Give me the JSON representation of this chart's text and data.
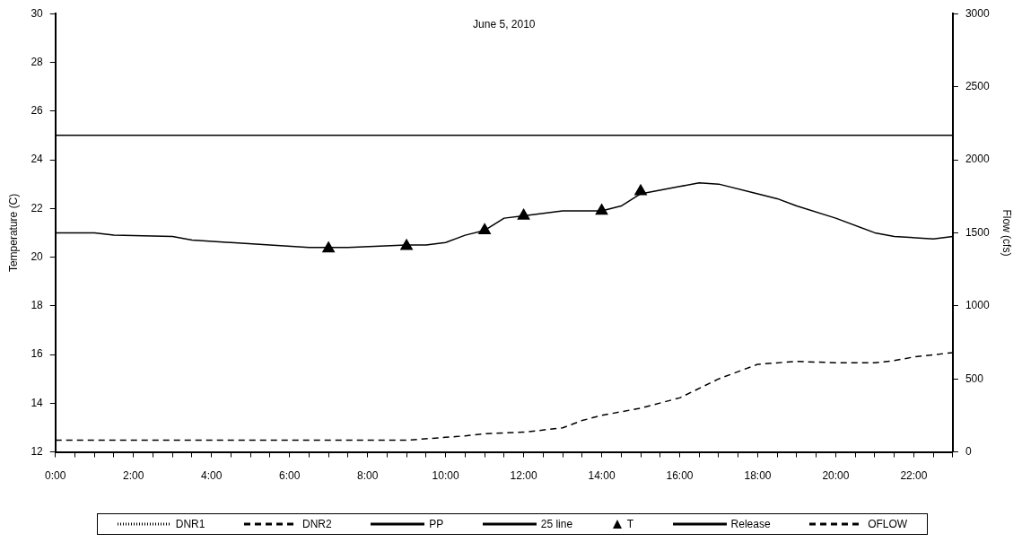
{
  "chart_data": {
    "type": "line",
    "title": "June 5, 2010",
    "ylabel": "Temperature (C)",
    "y2label": "Flow (cfs)",
    "xlim": [
      0,
      23
    ],
    "xticks": [
      {
        "value": 0,
        "label": "0:00"
      },
      {
        "value": 0.5,
        "label": null
      },
      {
        "value": 1,
        "label": null
      },
      {
        "value": 1.5,
        "label": null
      },
      {
        "value": 2,
        "label": "2:00"
      },
      {
        "value": 2.5,
        "label": null
      },
      {
        "value": 3,
        "label": null
      },
      {
        "value": 3.5,
        "label": null
      },
      {
        "value": 4,
        "label": "4:00"
      },
      {
        "value": 4.5,
        "label": null
      },
      {
        "value": 5,
        "label": null
      },
      {
        "value": 5.5,
        "label": null
      },
      {
        "value": 6,
        "label": "6:00"
      },
      {
        "value": 6.5,
        "label": null
      },
      {
        "value": 7,
        "label": null
      },
      {
        "value": 7.5,
        "label": null
      },
      {
        "value": 8,
        "label": "8:00"
      },
      {
        "value": 8.5,
        "label": null
      },
      {
        "value": 9,
        "label": null
      },
      {
        "value": 9.5,
        "label": null
      },
      {
        "value": 10,
        "label": "10:00"
      },
      {
        "value": 10.5,
        "label": null
      },
      {
        "value": 11,
        "label": null
      },
      {
        "value": 11.5,
        "label": null
      },
      {
        "value": 12,
        "label": "12:00"
      },
      {
        "value": 12.5,
        "label": null
      },
      {
        "value": 13,
        "label": null
      },
      {
        "value": 13.5,
        "label": null
      },
      {
        "value": 14,
        "label": "14:00"
      },
      {
        "value": 14.5,
        "label": null
      },
      {
        "value": 15,
        "label": null
      },
      {
        "value": 15.5,
        "label": null
      },
      {
        "value": 16,
        "label": "16:00"
      },
      {
        "value": 16.5,
        "label": null
      },
      {
        "value": 17,
        "label": null
      },
      {
        "value": 17.5,
        "label": null
      },
      {
        "value": 18,
        "label": "18:00"
      },
      {
        "value": 18.5,
        "label": null
      },
      {
        "value": 19,
        "label": null
      },
      {
        "value": 19.5,
        "label": null
      },
      {
        "value": 20,
        "label": "20:00"
      },
      {
        "value": 20.5,
        "label": null
      },
      {
        "value": 21,
        "label": null
      },
      {
        "value": 21.5,
        "label": null
      },
      {
        "value": 22,
        "label": "22:00"
      },
      {
        "value": 22.5,
        "label": null
      },
      {
        "value": 23,
        "label": null
      }
    ],
    "ylim": [
      12,
      30
    ],
    "yticks": [
      12,
      14,
      16,
      18,
      20,
      22,
      24,
      26,
      28,
      30
    ],
    "y2lim": [
      0,
      3000
    ],
    "y2ticks": [
      0,
      500,
      1000,
      1500,
      2000,
      2500,
      3000
    ],
    "legend": "bottom",
    "grid": false,
    "marker": "none",
    "series": [
      {
        "name": "DNR1",
        "color": "#000000",
        "line_style": "dotted"
      },
      {
        "name": "DNR2",
        "color": "#000000",
        "line_style": "dashed"
      },
      {
        "name": "PP",
        "color": "#000000",
        "line_style": "solid",
        "x": [
          0,
          1,
          1.5,
          3,
          3.5,
          4.5,
          5.5,
          6.5,
          7,
          7.5,
          9,
          9.5,
          10,
          10.5,
          11,
          11.5,
          12,
          13,
          13.5,
          14,
          14.5,
          15,
          16,
          16.5,
          17,
          18,
          18.5,
          19,
          20,
          21,
          21.5,
          22.5,
          23
        ],
        "values": [
          21.0,
          21.0,
          20.9,
          20.85,
          20.7,
          20.6,
          20.5,
          20.4,
          20.4,
          20.4,
          20.5,
          20.5,
          20.6,
          20.9,
          21.1,
          21.6,
          21.7,
          21.9,
          21.9,
          21.9,
          22.1,
          22.6,
          22.9,
          23.05,
          23.0,
          22.6,
          22.4,
          22.1,
          21.6,
          21.0,
          20.85,
          20.75,
          20.85
        ]
      },
      {
        "name": "25 line",
        "color": "#000000",
        "line_style": "solid",
        "x": [
          0,
          23
        ],
        "values": [
          25,
          25
        ]
      },
      {
        "name": "T",
        "type": "scatter",
        "marker": "triangle",
        "color": "#000000",
        "x": [
          7,
          9,
          11,
          12,
          14,
          15
        ],
        "values": [
          20.35,
          20.45,
          21.1,
          21.7,
          21.9,
          22.7
        ]
      },
      {
        "name": "Release",
        "color": "#000000",
        "line_style": "solid",
        "axis": "y2"
      },
      {
        "name": "OFLOW",
        "color": "#000000",
        "line_style": "dashed",
        "axis": "y2",
        "x": [
          0,
          9,
          10,
          10.5,
          11,
          12,
          13,
          13.5,
          14,
          15,
          16,
          17,
          18,
          19,
          20,
          21,
          21.5,
          22,
          23
        ],
        "values": [
          80,
          80,
          100,
          110,
          125,
          135,
          165,
          215,
          250,
          300,
          370,
          500,
          600,
          620,
          610,
          610,
          625,
          650,
          680
        ]
      }
    ]
  }
}
